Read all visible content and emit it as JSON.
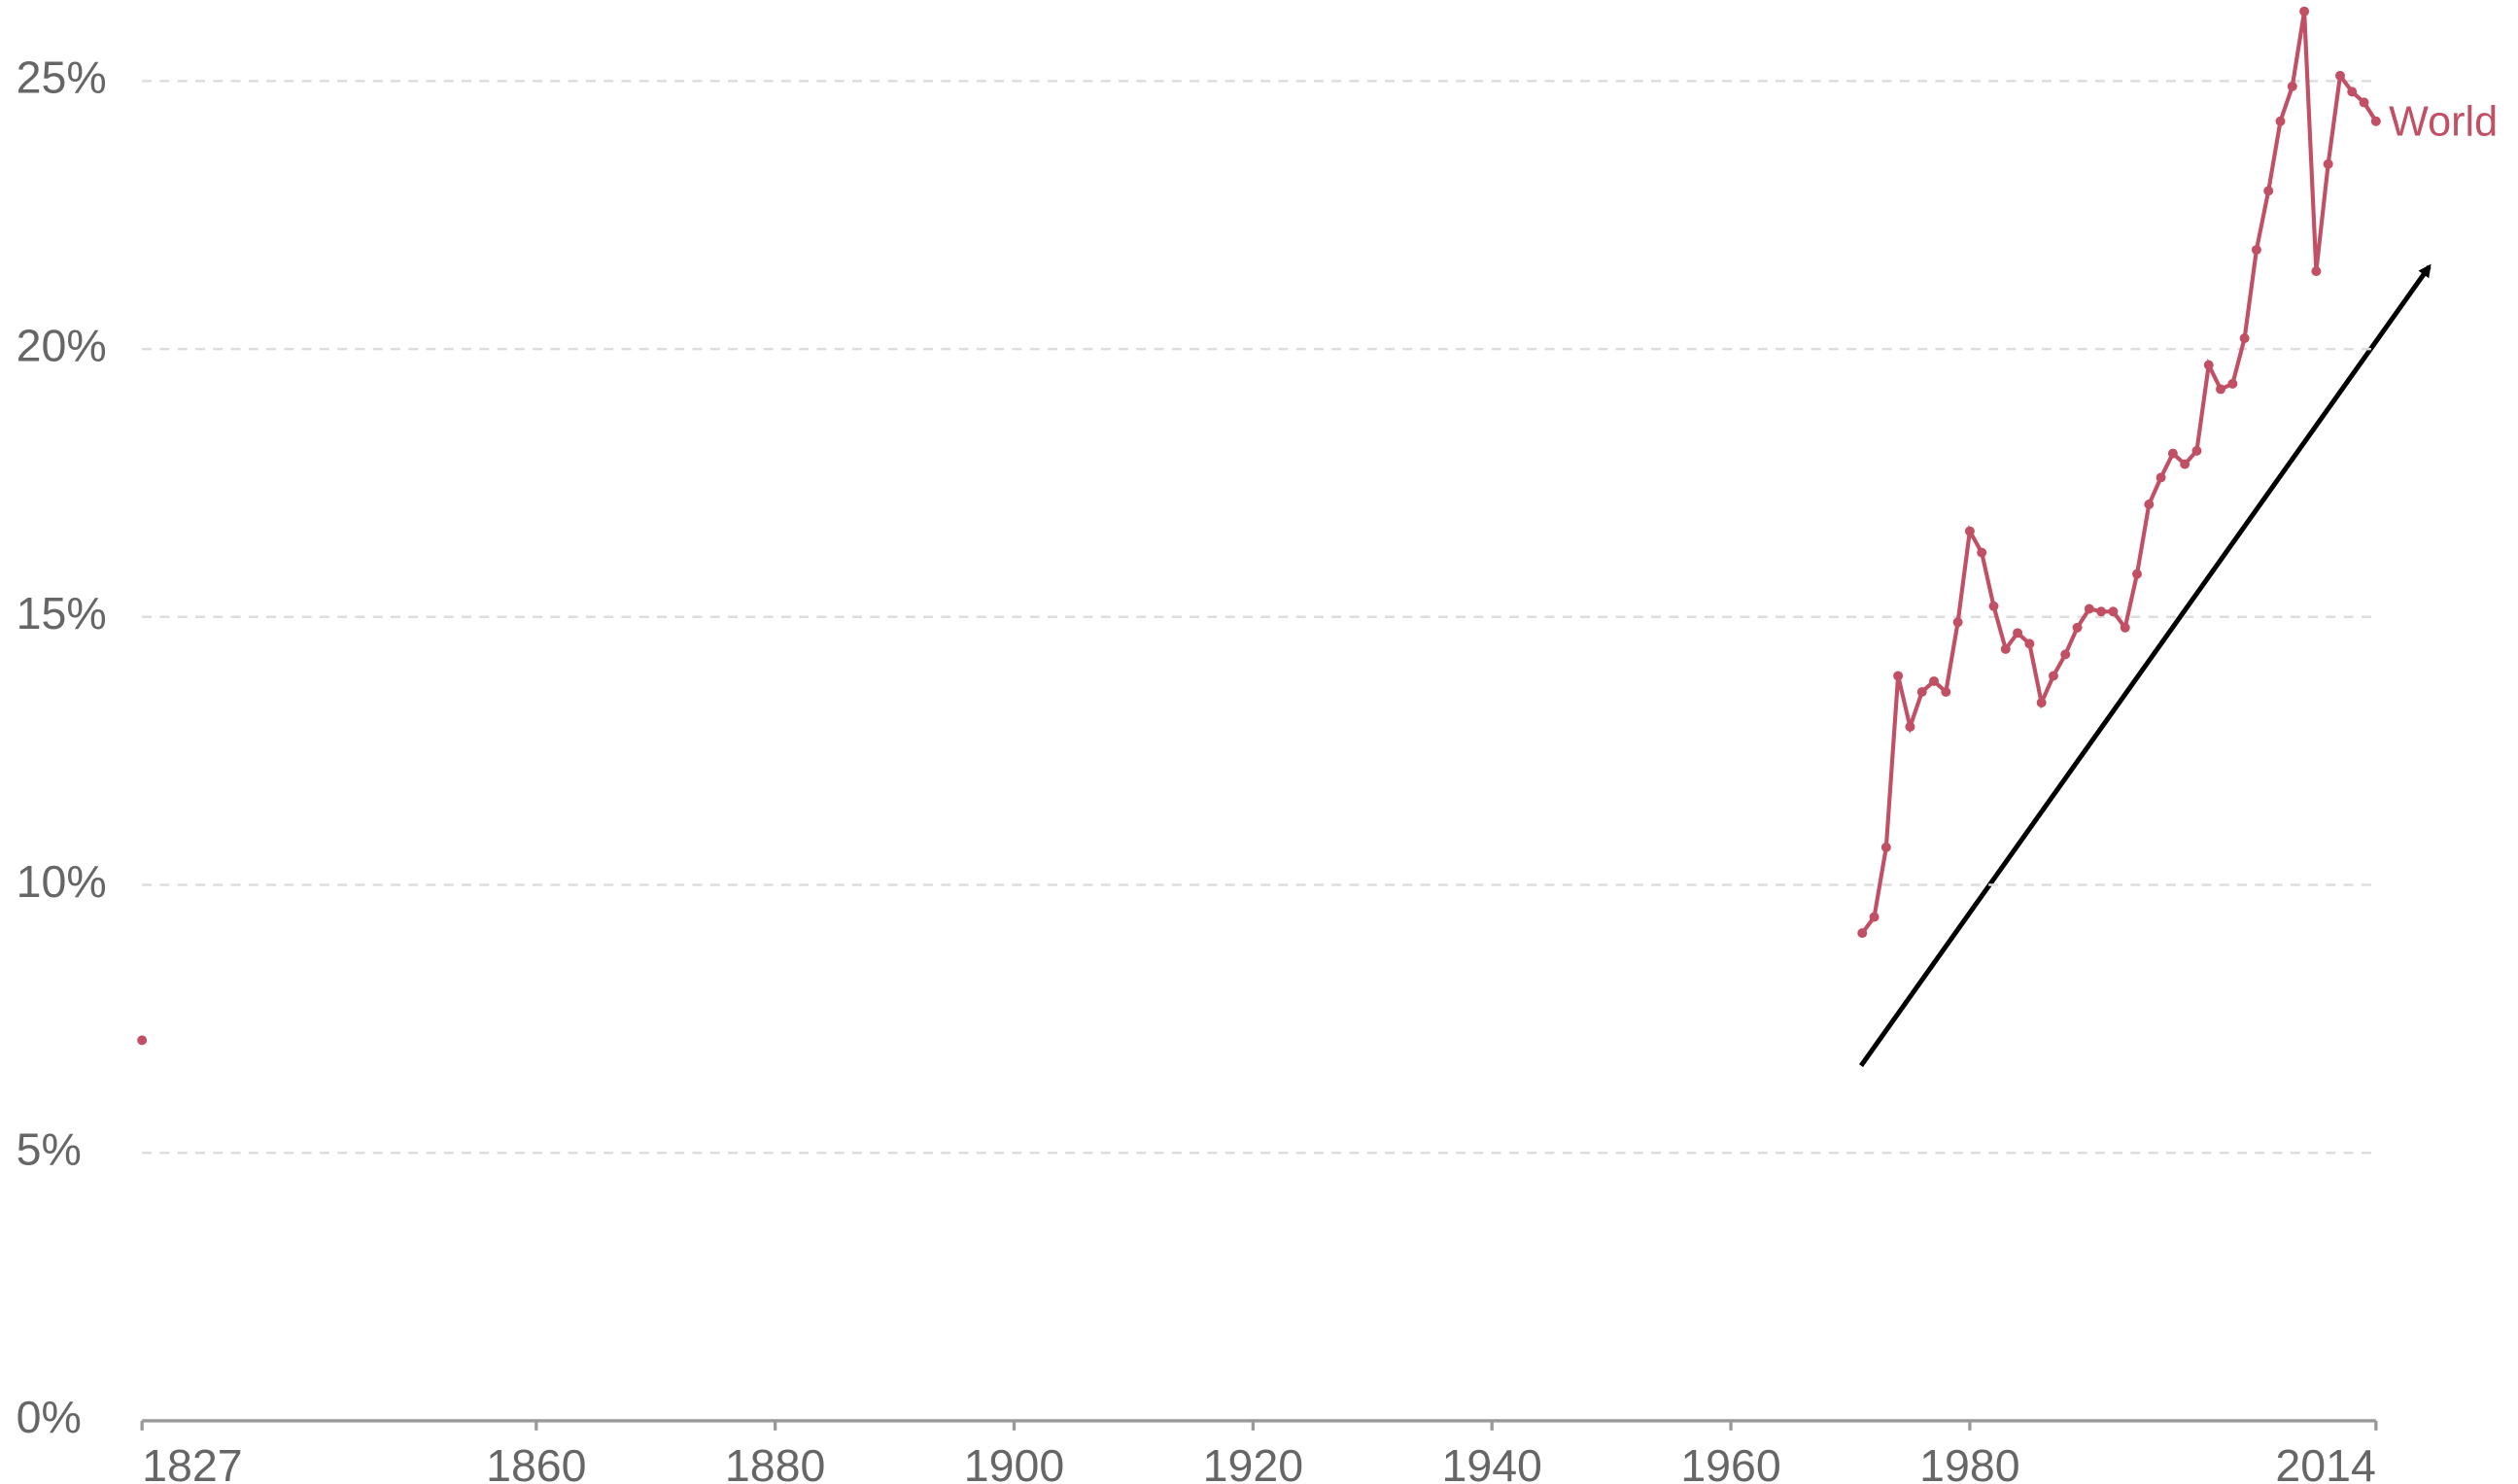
{
  "chart_data": {
    "type": "line",
    "x": [
      1827,
      1971,
      1972,
      1973,
      1974,
      1975,
      1976,
      1977,
      1978,
      1979,
      1980,
      1981,
      1982,
      1983,
      1984,
      1985,
      1986,
      1987,
      1988,
      1989,
      1990,
      1991,
      1992,
      1993,
      1994,
      1995,
      1996,
      1997,
      1998,
      1999,
      2000,
      2001,
      2002,
      2003,
      2004,
      2005,
      2006,
      2007,
      2008,
      2009,
      2010,
      2011,
      2012,
      2013,
      2014
    ],
    "series": [
      {
        "name": "World",
        "color": "#c15065",
        "values": [
          7.1,
          9.1,
          9.4,
          10.7,
          13.9,
          12.95,
          13.6,
          13.8,
          13.6,
          14.9,
          16.6,
          16.2,
          15.2,
          14.4,
          14.7,
          14.5,
          13.4,
          13.9,
          14.3,
          14.8,
          15.15,
          15.1,
          15.1,
          14.8,
          15.8,
          17.1,
          17.6,
          18.05,
          17.85,
          18.1,
          19.7,
          19.25,
          19.35,
          20.2,
          21.85,
          22.95,
          24.25,
          24.9,
          26.3,
          21.45,
          23.45,
          25.1,
          24.8,
          24.6,
          24.25
        ]
      }
    ],
    "xlim": [
      1827,
      2014
    ],
    "xticks": [
      1827,
      1860,
      1880,
      1900,
      1920,
      1940,
      1960,
      1980,
      2014
    ],
    "ylim": [
      0,
      25
    ],
    "yticks": [
      {
        "value": 0,
        "label": "0%"
      },
      {
        "value": 5,
        "label": "5%"
      },
      {
        "value": 10,
        "label": "10%"
      },
      {
        "value": 15,
        "label": "15%"
      },
      {
        "value": 20,
        "label": "20%"
      },
      {
        "value": 25,
        "label": "25%"
      }
    ],
    "grid": true
  }
}
